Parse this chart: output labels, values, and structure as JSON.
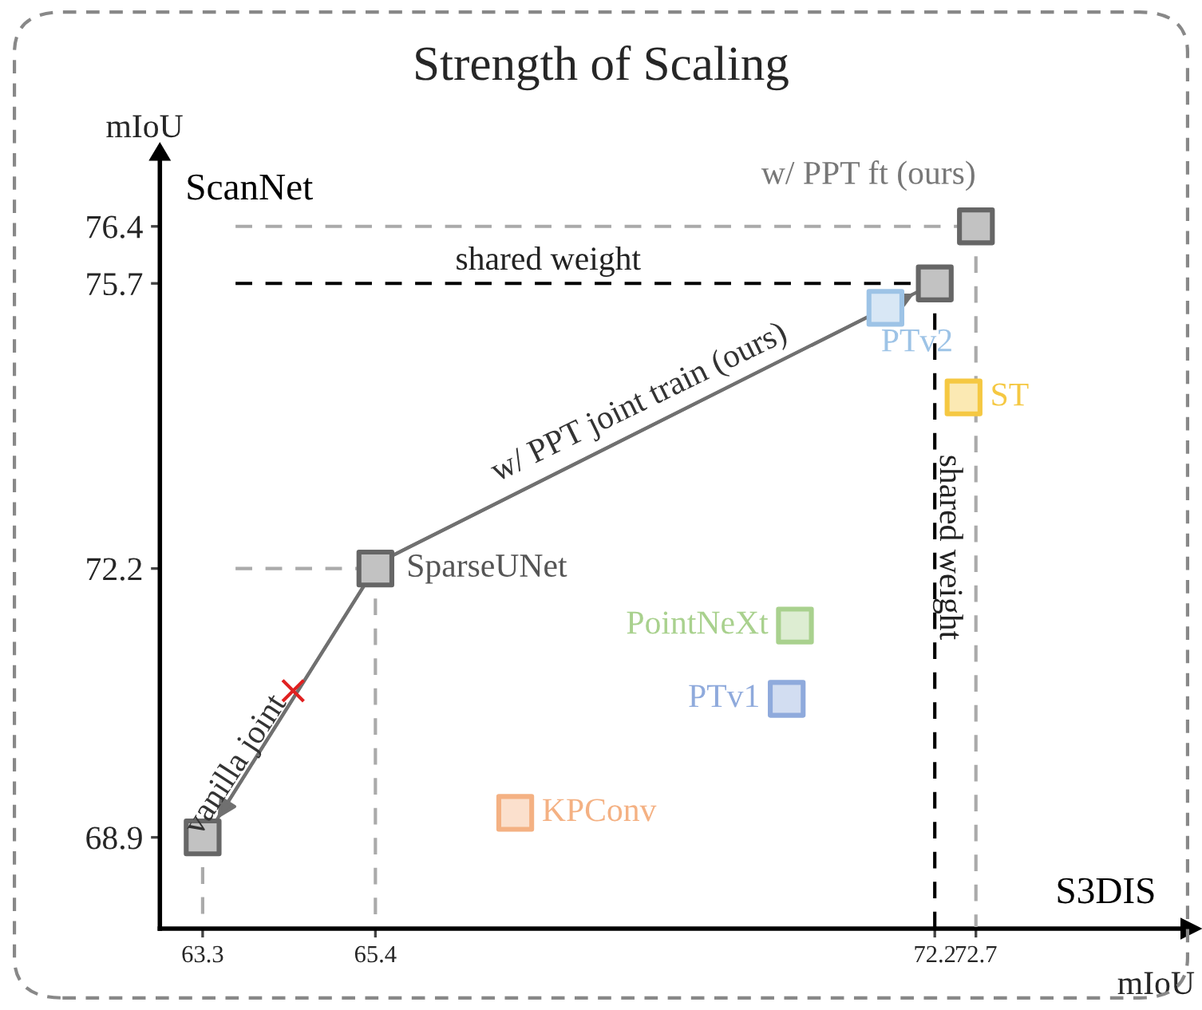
{
  "chart_data": {
    "type": "scatter",
    "title": "Strength of Scaling",
    "xlabel": "mIoU",
    "ylabel": "mIoU",
    "xlim": [
      62.78,
      75.2
    ],
    "ylim": [
      67.78,
      77.22
    ],
    "xticks": [
      63.3,
      65.4,
      72.2,
      72.7
    ],
    "yticks": [
      68.9,
      72.2,
      75.7,
      76.4
    ],
    "grid": false,
    "legend": false,
    "marker": "square",
    "series": [
      {
        "type": "line",
        "color": "#aaaaaa",
        "line_style": "dashed",
        "marker": "none",
        "x": [
          63.7,
          72.7
        ],
        "values": [
          76.4,
          76.4
        ]
      },
      {
        "type": "line",
        "color": "#aaaaaa",
        "line_style": "dashed",
        "marker": "none",
        "x": [
          72.7,
          72.7
        ],
        "values": [
          76.4,
          67.8
        ]
      },
      {
        "type": "line",
        "color": "#aaaaaa",
        "line_style": "dashed",
        "marker": "none",
        "x": [
          63.7,
          65.4
        ],
        "values": [
          72.2,
          72.2
        ]
      },
      {
        "type": "line",
        "color": "#aaaaaa",
        "line_style": "dashed",
        "marker": "none",
        "x": [
          65.4,
          65.4
        ],
        "values": [
          72.2,
          67.8
        ]
      },
      {
        "type": "line",
        "color": "#aaaaaa",
        "line_style": "dashed",
        "marker": "none",
        "x": [
          63.3,
          63.3
        ],
        "values": [
          68.9,
          67.8
        ]
      },
      {
        "type": "line",
        "color": "#000000",
        "line_style": "dashed",
        "marker": "none",
        "x": [
          63.7,
          72.2
        ],
        "values": [
          75.7,
          75.7
        ]
      },
      {
        "type": "line",
        "color": "#000000",
        "line_style": "dashed",
        "marker": "none",
        "x": [
          72.2,
          72.2
        ],
        "values": [
          75.7,
          67.8
        ]
      },
      {
        "type": "line",
        "color": "#707070",
        "line_style": "solid",
        "marker": "none",
        "x": [
          65.55,
          72.0
        ],
        "values": [
          72.33,
          75.6
        ]
      },
      {
        "type": "line",
        "color": "#707070",
        "line_style": "solid",
        "marker": "none",
        "x": [
          65.3,
          63.45
        ],
        "values": [
          72.05,
          69.08
        ]
      },
      {
        "color": "#666666",
        "x": [
          63.3,
          65.4,
          72.2,
          72.7
        ],
        "values": [
          68.9,
          72.2,
          75.7,
          76.4
        ]
      },
      {
        "name": "PTv2",
        "color": "#9dc3e6",
        "x": [
          71.6
        ],
        "values": [
          75.4
        ]
      },
      {
        "name": "ST",
        "color": "#f5c842",
        "x": [
          72.55
        ],
        "values": [
          74.3
        ]
      },
      {
        "name": "PointNeXt",
        "color": "#a9d18e",
        "x": [
          70.5
        ],
        "values": [
          71.5
        ]
      },
      {
        "name": "PTv1",
        "color": "#8faadc",
        "x": [
          70.4
        ],
        "values": [
          70.6
        ]
      },
      {
        "name": "KPConv",
        "color": "#f4b183",
        "x": [
          67.1
        ],
        "values": [
          69.2
        ]
      },
      {
        "color": "#e02020",
        "marker": "cross",
        "x": [
          64.4
        ],
        "values": [
          70.7
        ]
      }
    ],
    "annotations": [
      "ScanNet",
      "S3DIS",
      {
        "text": "SparseUNet",
        "x": 65.4,
        "y": 72.2
      },
      {
        "text": "w/ PPT ft (ours)",
        "x": 72.7,
        "y": 76.4
      },
      {
        "text": "shared weight",
        "x": 67.5,
        "y": 75.7
      },
      {
        "text": "shared weight",
        "x": 72.2,
        "y": 73.6
      },
      {
        "text": "w/ PPT joint train (ours)",
        "x": 68.8,
        "y": 73.95
      },
      {
        "text": "vanilla joint",
        "x": 64.35,
        "y": 70.55
      }
    ]
  }
}
